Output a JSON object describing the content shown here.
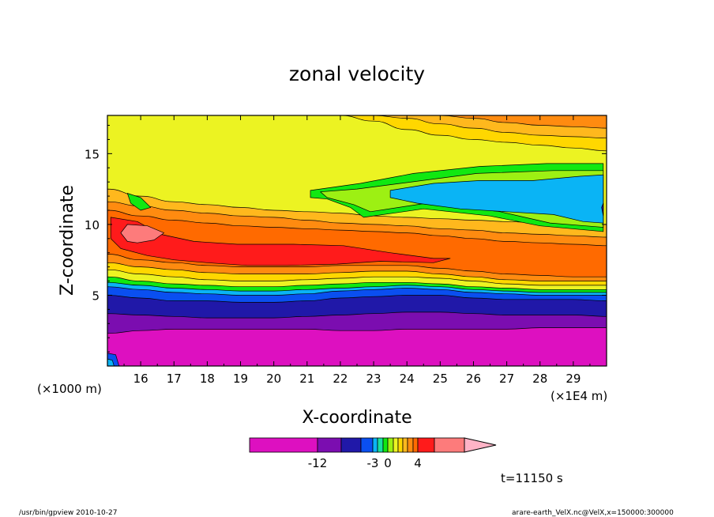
{
  "chart_data": {
    "type": "heatmap",
    "title": "zonal velocity",
    "xlabel": "X-coordinate",
    "ylabel": "Z-coordinate",
    "x_unit_left": "(×1000 m)",
    "x_unit_right": "(×1E4 m)",
    "xlim": [
      15.0,
      30.0
    ],
    "ylim": [
      0.0,
      17.7
    ],
    "x_ticks": [
      16,
      17,
      18,
      19,
      20,
      21,
      22,
      23,
      24,
      25,
      26,
      27,
      28,
      29
    ],
    "y_ticks": [
      5,
      10,
      15
    ],
    "colorbar": {
      "tick_labels": [
        "-12",
        "-3",
        "0",
        "4"
      ],
      "colors": [
        "#dd10c0",
        "#7b0db0",
        "#2018a8",
        "#0a4ff0",
        "#0ab4f5",
        "#18e0a0",
        "#11e811",
        "#9df013",
        "#ecf322",
        "#ffd700",
        "#ffb81d",
        "#ff8b10",
        "#ff6a00",
        "#ff1b1b",
        "#fd7b7b",
        "#ffb3c6"
      ]
    },
    "annotations": {
      "time": "t=11150 s",
      "footer_left": "/usr/bin/gpview  2010-10-27",
      "footer_right": "arare-earth_VelX.nc@VelX,x=150000:300000"
    },
    "bands": [
      {
        "color": "#dd10c0",
        "z_top": [
          2.3,
          2.5,
          2.6,
          2.6,
          2.6,
          2.6,
          2.6,
          2.5,
          2.5,
          2.6,
          2.6,
          2.6,
          2.6,
          2.7,
          2.7,
          2.7
        ]
      },
      {
        "color": "#7b0db0",
        "z_top": [
          3.7,
          3.6,
          3.5,
          3.4,
          3.4,
          3.4,
          3.5,
          3.6,
          3.7,
          3.8,
          3.8,
          3.7,
          3.6,
          3.6,
          3.6,
          3.5
        ]
      },
      {
        "color": "#2018a8",
        "z_top": [
          5.0,
          4.8,
          4.6,
          4.6,
          4.5,
          4.5,
          4.6,
          4.8,
          4.9,
          5.0,
          5.0,
          4.8,
          4.7,
          4.7,
          4.7,
          4.6
        ]
      },
      {
        "color": "#0a4ff0",
        "z_top": [
          5.6,
          5.4,
          5.2,
          5.1,
          5.0,
          5.0,
          5.1,
          5.3,
          5.4,
          5.5,
          5.4,
          5.2,
          5.1,
          5.0,
          5.0,
          5.0
        ]
      },
      {
        "color": "#0ab4f5",
        "z_top": [
          5.9,
          5.7,
          5.5,
          5.4,
          5.3,
          5.3,
          5.4,
          5.5,
          5.6,
          5.7,
          5.6,
          5.4,
          5.3,
          5.2,
          5.2,
          5.2
        ]
      },
      {
        "color": "#11e811",
        "z_top": [
          6.3,
          6.0,
          5.8,
          5.7,
          5.6,
          5.6,
          5.7,
          5.8,
          5.9,
          5.9,
          5.8,
          5.6,
          5.5,
          5.4,
          5.4,
          5.4
        ]
      },
      {
        "color": "#ecf322",
        "z_top": [
          6.8,
          6.5,
          6.3,
          6.1,
          6.0,
          6.0,
          6.1,
          6.2,
          6.3,
          6.3,
          6.2,
          6.0,
          5.8,
          5.7,
          5.7,
          5.7
        ]
      },
      {
        "color": "#ffd700",
        "z_top": [
          7.3,
          7.0,
          6.8,
          6.6,
          6.5,
          6.5,
          6.5,
          6.6,
          6.7,
          6.7,
          6.5,
          6.3,
          6.1,
          6.0,
          6.0,
          6.0
        ]
      },
      {
        "color": "#ff8b10",
        "z_top": [
          7.9,
          7.5,
          7.3,
          7.1,
          7.0,
          7.0,
          7.0,
          7.1,
          7.1,
          7.1,
          6.9,
          6.7,
          6.5,
          6.4,
          6.3,
          6.3
        ]
      },
      {
        "color": "#ff6a00",
        "z_top": [
          11.0,
          10.6,
          10.3,
          10.1,
          9.9,
          9.8,
          9.7,
          9.6,
          9.5,
          9.4,
          9.2,
          9.0,
          8.8,
          8.7,
          8.6,
          8.5
        ]
      },
      {
        "color": "#ff8b10",
        "z_top": [
          11.6,
          11.3,
          11.0,
          10.8,
          10.6,
          10.5,
          10.3,
          10.1,
          10.0,
          9.9,
          9.7,
          9.6,
          9.4,
          9.3,
          9.2,
          9.1
        ]
      },
      {
        "color": "#ffb81d",
        "z_top": [
          12.5,
          12.0,
          11.6,
          11.4,
          11.2,
          11.0,
          10.9,
          10.8,
          10.6,
          10.5,
          10.4,
          10.3,
          10.2,
          10.1,
          10.0,
          10.0
        ]
      },
      {
        "color": "#ecf322",
        "z_top": [
          17.7,
          17.7,
          17.7,
          17.7,
          17.7,
          17.7,
          17.7,
          17.7,
          17.7,
          17.7,
          17.7,
          17.7,
          17.7,
          17.7,
          17.7,
          17.7
        ]
      }
    ],
    "patches": [
      {
        "color": "#ffd700",
        "z_top": [
          17.7,
          17.7,
          17.7,
          17.7,
          17.7,
          17.7,
          17.7,
          17.7,
          17.7,
          17.7,
          17.7,
          17.7,
          17.7,
          17.7,
          17.7,
          17.7
        ],
        "z_bottom": [
          17.7,
          17.7,
          17.7,
          17.7,
          17.7,
          17.7,
          17.7,
          17.7,
          17.3,
          16.7,
          16.3,
          16.0,
          15.8,
          15.6,
          15.4,
          15.2
        ]
      },
      {
        "color": "#ffb81d",
        "z_top": [
          17.7,
          17.7,
          17.7,
          17.7,
          17.7,
          17.7,
          17.7,
          17.7,
          17.7,
          17.7,
          17.7,
          17.7,
          17.7,
          17.7,
          17.7,
          17.7
        ],
        "z_bottom": [
          17.7,
          17.7,
          17.7,
          17.7,
          17.7,
          17.7,
          17.7,
          17.7,
          17.7,
          17.5,
          17.1,
          16.8,
          16.5,
          16.3,
          16.2,
          16.1
        ]
      },
      {
        "color": "#ff8b10",
        "z_top": [
          17.7,
          17.7,
          17.7,
          17.7,
          17.7,
          17.7,
          17.7,
          17.7,
          17.7,
          17.7,
          17.7,
          17.7,
          17.7,
          17.7,
          17.7,
          17.7
        ],
        "z_bottom": [
          17.7,
          17.7,
          17.7,
          17.7,
          17.7,
          17.7,
          17.7,
          17.7,
          17.7,
          17.7,
          17.7,
          17.5,
          17.2,
          17.0,
          16.9,
          16.8
        ]
      }
    ],
    "shapes": [
      {
        "color": "#11e811",
        "points": [
          [
            21.1,
            12.4
          ],
          [
            22.6,
            12.9
          ],
          [
            24.2,
            13.6
          ],
          [
            26.2,
            14.1
          ],
          [
            28.2,
            14.3
          ],
          [
            29.9,
            14.3
          ],
          [
            29.9,
            9.5
          ],
          [
            28.0,
            9.9
          ],
          [
            26.5,
            10.6
          ],
          [
            24.5,
            11.1
          ],
          [
            22.7,
            10.5
          ],
          [
            22.3,
            11.2
          ],
          [
            21.6,
            11.8
          ],
          [
            21.1,
            11.9
          ]
        ]
      },
      {
        "color": "#9df013",
        "points": [
          [
            21.4,
            12.3
          ],
          [
            22.5,
            12.5
          ],
          [
            23.8,
            12.9
          ],
          [
            26.1,
            13.6
          ],
          [
            28.4,
            13.8
          ],
          [
            29.9,
            13.8
          ],
          [
            29.9,
            9.8
          ],
          [
            28.3,
            10.1
          ],
          [
            26.8,
            10.9
          ],
          [
            24.6,
            11.5
          ],
          [
            22.9,
            10.9
          ],
          [
            22.4,
            11.4
          ],
          [
            21.6,
            11.9
          ]
        ]
      },
      {
        "color": "#0ab4f5",
        "points": [
          [
            23.5,
            12.4
          ],
          [
            24.8,
            12.9
          ],
          [
            26.2,
            13.1
          ],
          [
            27.8,
            13.1
          ],
          [
            29.2,
            13.4
          ],
          [
            29.9,
            13.5
          ],
          [
            29.9,
            10.1
          ],
          [
            29.3,
            10.2
          ],
          [
            28.4,
            10.7
          ],
          [
            27.0,
            10.9
          ],
          [
            25.6,
            11.1
          ],
          [
            24.3,
            11.5
          ],
          [
            23.5,
            11.9
          ]
        ]
      },
      {
        "color": "#ff1b1b",
        "points": [
          [
            15.1,
            10.5
          ],
          [
            15.9,
            10.2
          ],
          [
            16.6,
            9.3
          ],
          [
            17.6,
            8.8
          ],
          [
            18.9,
            8.6
          ],
          [
            20.6,
            8.6
          ],
          [
            22.1,
            8.5
          ],
          [
            23.5,
            8.0
          ],
          [
            24.8,
            7.6
          ],
          [
            25.3,
            7.6
          ],
          [
            24.8,
            7.3
          ],
          [
            23.2,
            7.4
          ],
          [
            21.9,
            7.2
          ],
          [
            20.4,
            7.1
          ],
          [
            19.2,
            7.1
          ],
          [
            18.0,
            7.3
          ],
          [
            17.0,
            7.5
          ],
          [
            16.2,
            7.8
          ],
          [
            15.4,
            8.3
          ],
          [
            15.1,
            9.0
          ]
        ]
      },
      {
        "color": "#fd7b7b",
        "points": [
          [
            15.6,
            10.0
          ],
          [
            16.2,
            9.9
          ],
          [
            16.7,
            9.4
          ],
          [
            16.4,
            8.9
          ],
          [
            15.9,
            8.7
          ],
          [
            15.6,
            8.8
          ],
          [
            15.4,
            9.4
          ]
        ]
      },
      {
        "color": "#11e811",
        "points": [
          [
            15.6,
            12.2
          ],
          [
            16.0,
            11.9
          ],
          [
            16.3,
            11.2
          ],
          [
            16.0,
            11.0
          ],
          [
            15.7,
            11.5
          ]
        ]
      },
      {
        "color": "#0a4ff0",
        "points": [
          [
            15.0,
            0.9
          ],
          [
            15.25,
            0.8
          ],
          [
            15.35,
            0.0
          ],
          [
            15.0,
            0.0
          ]
        ]
      },
      {
        "color": "#0ab4f5",
        "points": [
          [
            15.0,
            0.5
          ],
          [
            15.15,
            0.4
          ],
          [
            15.2,
            0.0
          ],
          [
            15.0,
            0.0
          ]
        ]
      },
      {
        "color": "#2018a8",
        "points": [
          [
            29.85,
            11.2
          ],
          [
            29.9,
            11.5
          ],
          [
            29.9,
            10.6
          ]
        ]
      }
    ]
  }
}
